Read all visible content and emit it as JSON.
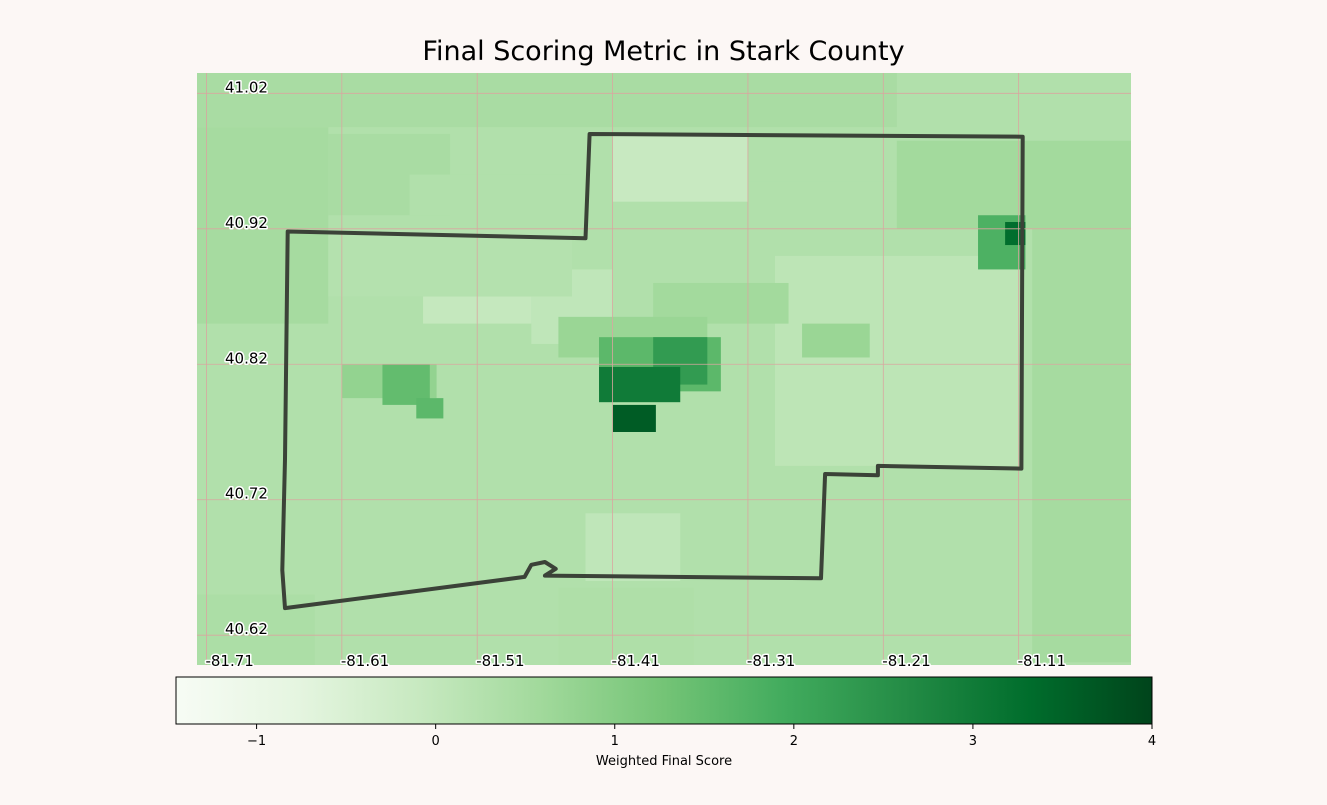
{
  "title": "Final Scoring Metric in Stark County",
  "colorbar": {
    "label": "Weighted Final Score",
    "min": -1.45,
    "max": 4,
    "ticks": [
      -1,
      0,
      1,
      2,
      3,
      4
    ],
    "tick_labels": [
      "−1",
      "0",
      "1",
      "2",
      "3",
      "4"
    ],
    "colormap": "Greens"
  },
  "axes": {
    "lon_ticks": [
      "-81.71",
      "-81.61",
      "-81.51",
      "-81.41",
      "-81.31",
      "-81.21",
      "-81.11"
    ],
    "lat_ticks": [
      "41.02",
      "40.92",
      "40.82",
      "40.72",
      "40.62"
    ],
    "lon_range": [
      -81.717,
      -81.027
    ],
    "lat_range": [
      40.598,
      41.035
    ],
    "grid": true,
    "grid_color": "#d9a6a0"
  },
  "county": {
    "name": "Stark County",
    "outline_color": "#3b4238",
    "boundary": [
      [
        -81.65,
        40.918
      ],
      [
        -81.43,
        40.913
      ],
      [
        -81.427,
        40.99
      ],
      [
        -81.107,
        40.988
      ],
      [
        -81.108,
        40.743
      ],
      [
        -81.214,
        40.745
      ],
      [
        -81.214,
        40.738
      ],
      [
        -81.253,
        40.739
      ],
      [
        -81.256,
        40.662
      ],
      [
        -81.46,
        40.664
      ],
      [
        -81.452,
        40.669
      ],
      [
        -81.46,
        40.674
      ],
      [
        -81.47,
        40.672
      ],
      [
        -81.475,
        40.663
      ],
      [
        -81.652,
        40.64
      ],
      [
        -81.654,
        40.668
      ],
      [
        -81.652,
        40.75
      ],
      [
        -81.65,
        40.918
      ]
    ]
  },
  "choropleth": {
    "background_score": 0.3,
    "regions": [
      {
        "lon": [
          -81.717,
          -81.2
        ],
        "lat": [
          41.035,
          40.995
        ],
        "score": 0.45
      },
      {
        "lon": [
          -81.717,
          -81.62
        ],
        "lat": [
          40.995,
          40.85
        ],
        "score": 0.5
      },
      {
        "lon": [
          -81.62,
          -81.53
        ],
        "lat": [
          40.99,
          40.93
        ],
        "score": 0.45
      },
      {
        "lon": [
          -81.56,
          -81.44
        ],
        "lat": [
          40.96,
          40.93
        ],
        "score": 0.3
      },
      {
        "lon": [
          -81.33,
          -81.19
        ],
        "lat": [
          40.955,
          40.92
        ],
        "score": 0.3
      },
      {
        "lon": [
          -81.2,
          -81.027
        ],
        "lat": [
          40.985,
          40.92
        ],
        "score": 0.55
      },
      {
        "lon": [
          -81.1,
          -81.027
        ],
        "lat": [
          40.92,
          40.6
        ],
        "score": 0.5
      },
      {
        "lon": [
          -81.717,
          -81.63
        ],
        "lat": [
          40.65,
          40.598
        ],
        "score": 0.4
      },
      {
        "lon": [
          -81.45,
          -81.35
        ],
        "lat": [
          40.655,
          40.598
        ],
        "score": 0.35
      },
      {
        "lon": [
          -81.41,
          -81.31
        ],
        "lat": [
          40.99,
          40.94
        ],
        "score": -0.1
      },
      {
        "lon": [
          -81.47,
          -81.41
        ],
        "lat": [
          40.89,
          40.835
        ],
        "score": 0.05
      },
      {
        "lon": [
          -81.55,
          -81.47
        ],
        "lat": [
          40.87,
          40.85
        ],
        "score": -0.05
      },
      {
        "lon": [
          -81.43,
          -81.36
        ],
        "lat": [
          40.71,
          40.66
        ],
        "score": 0.05
      },
      {
        "lon": [
          -81.29,
          -81.11
        ],
        "lat": [
          40.9,
          40.745
        ],
        "score": 0.1
      },
      {
        "lon": [
          -81.62,
          -81.44
        ],
        "lat": [
          40.92,
          40.87
        ],
        "score": 0.25
      },
      {
        "lon": [
          -81.38,
          -81.28
        ],
        "lat": [
          40.88,
          40.85
        ],
        "score": 0.55
      },
      {
        "lon": [
          -81.45,
          -81.34
        ],
        "lat": [
          40.855,
          40.825
        ],
        "score": 0.7
      },
      {
        "lon": [
          -81.27,
          -81.22
        ],
        "lat": [
          40.85,
          40.825
        ],
        "score": 0.7
      },
      {
        "lon": [
          -81.61,
          -81.54
        ],
        "lat": [
          40.82,
          40.795
        ],
        "score": 0.8
      },
      {
        "lon": [
          -81.58,
          -81.545
        ],
        "lat": [
          40.82,
          40.79
        ],
        "score": 1.5
      },
      {
        "lon": [
          -81.555,
          -81.535
        ],
        "lat": [
          40.795,
          40.78
        ],
        "score": 1.6
      },
      {
        "lon": [
          -81.42,
          -81.33
        ],
        "lat": [
          40.84,
          40.8
        ],
        "score": 1.6
      },
      {
        "lon": [
          -81.38,
          -81.34
        ],
        "lat": [
          40.84,
          40.805
        ],
        "score": 2.3
      },
      {
        "lon": [
          -81.42,
          -81.36
        ],
        "lat": [
          40.818,
          40.792
        ],
        "score": 3.0
      },
      {
        "lon": [
          -81.41,
          -81.378
        ],
        "lat": [
          40.79,
          40.77
        ],
        "score": 3.6
      },
      {
        "lon": [
          -81.14,
          -81.105
        ],
        "lat": [
          40.93,
          40.89
        ],
        "score": 1.8
      },
      {
        "lon": [
          -81.12,
          -81.105
        ],
        "lat": [
          40.925,
          40.908
        ],
        "score": 3.3
      }
    ]
  }
}
